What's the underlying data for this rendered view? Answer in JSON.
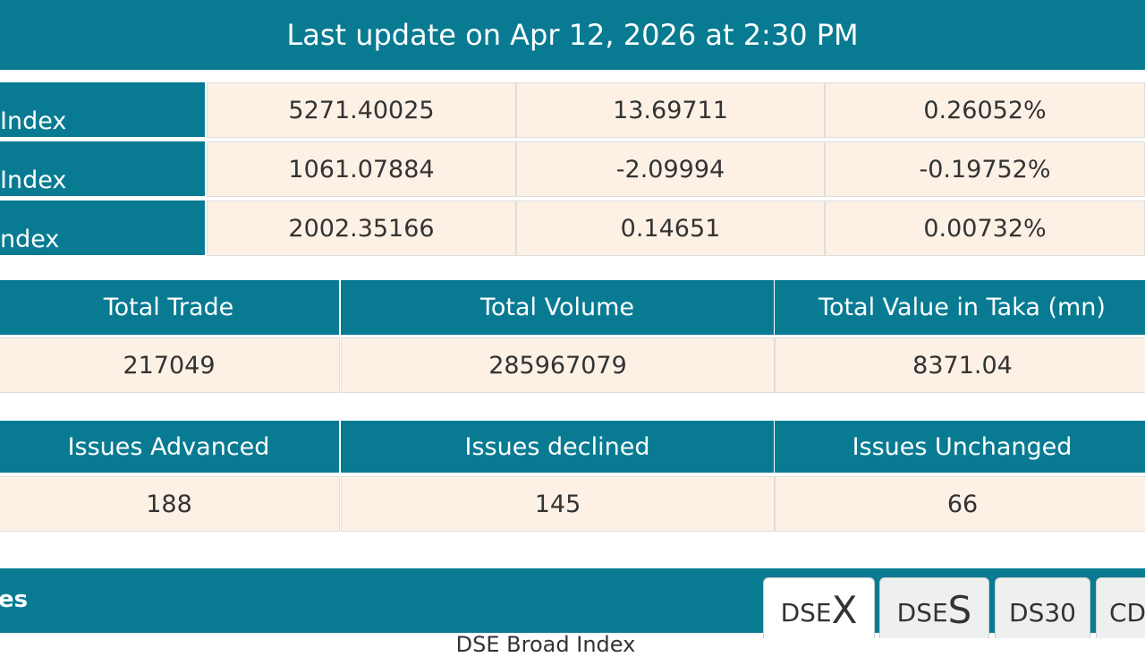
{
  "header": {
    "title": "Last update on Apr 12, 2026 at 2:30 PM"
  },
  "indices": [
    {
      "label": "Index",
      "value": "5271.40025",
      "change": "13.69711",
      "percent": "0.26052%"
    },
    {
      "label": "Index",
      "value": "1061.07884",
      "change": "-2.09994",
      "percent": "-0.19752%"
    },
    {
      "label": "ndex",
      "value": "2002.35166",
      "change": "0.14651",
      "percent": "0.00732%"
    }
  ],
  "trade": {
    "headers": [
      "Total Trade",
      "Total Volume",
      "Total Value in Taka (mn)"
    ],
    "values": [
      "217049",
      "285967079",
      "8371.04"
    ]
  },
  "issues": {
    "headers": [
      "Issues Advanced",
      "Issues declined",
      "Issues Unchanged"
    ],
    "values": [
      "188",
      "145",
      "66"
    ]
  },
  "bottom": {
    "label": "es",
    "tabs": [
      {
        "prefix": "DSE",
        "suffix": "X"
      },
      {
        "prefix": "DSE",
        "suffix": "S"
      },
      {
        "prefix": "DS30"
      },
      {
        "prefix": "CD"
      }
    ],
    "subtitle": "DSE Broad Index"
  }
}
